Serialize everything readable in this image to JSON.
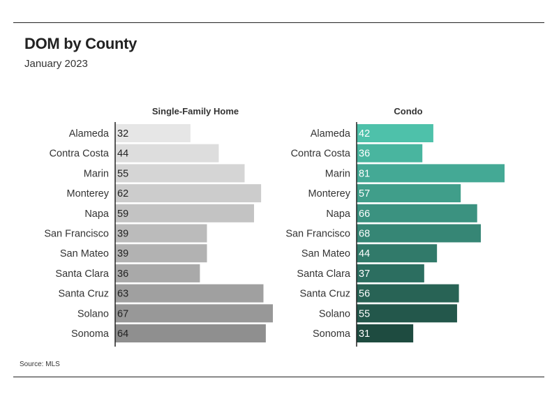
{
  "header": {
    "title": "DOM by County",
    "subtitle": "January 2023",
    "source": "Source: MLS"
  },
  "colors": {
    "single_family_range": [
      "#e6e6e6",
      "#8f8f8f"
    ],
    "condo_range": [
      "#4ec1aa",
      "#1e4b40"
    ],
    "axis": "#222222"
  },
  "chart_data": [
    {
      "type": "bar",
      "orientation": "horizontal",
      "title": "Single-Family Home",
      "categories": [
        "Alameda",
        "Contra Costa",
        "Marin",
        "Monterey",
        "Napa",
        "San Francisco",
        "San Mateo",
        "Santa Clara",
        "Santa Cruz",
        "Solano",
        "Sonoma"
      ],
      "values": [
        32,
        44,
        55,
        62,
        59,
        39,
        39,
        36,
        63,
        67,
        64
      ],
      "xlim": [
        0,
        67
      ],
      "grid": false
    },
    {
      "type": "bar",
      "orientation": "horizontal",
      "title": "Condo",
      "categories": [
        "Alameda",
        "Contra Costa",
        "Marin",
        "Monterey",
        "Napa",
        "San Francisco",
        "San Mateo",
        "Santa Clara",
        "Santa Cruz",
        "Solano",
        "Sonoma"
      ],
      "values": [
        42,
        36,
        81,
        57,
        66,
        68,
        44,
        37,
        56,
        55,
        31
      ],
      "xlim": [
        0,
        81
      ],
      "grid": false
    }
  ]
}
